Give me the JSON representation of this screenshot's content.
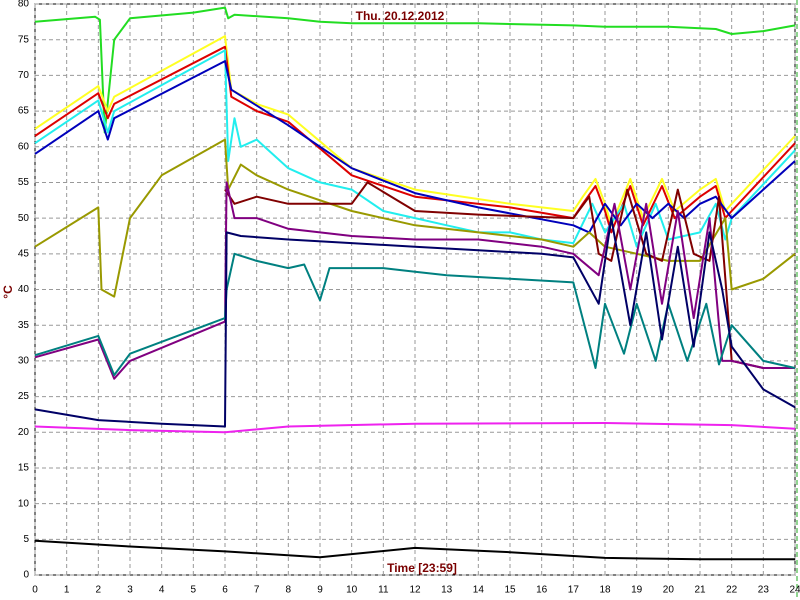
{
  "chart_data": {
    "type": "line",
    "title": "Thu. 20.12.2012",
    "x_label": "Time [23:59]",
    "y_label": "°C",
    "xlim": [
      0,
      24
    ],
    "ylim": [
      0,
      80
    ],
    "grid": true,
    "xticks": [
      0,
      1,
      2,
      3,
      4,
      5,
      6,
      7,
      8,
      9,
      10,
      11,
      12,
      13,
      14,
      15,
      16,
      17,
      18,
      19,
      20,
      21,
      22,
      23,
      24
    ],
    "yticks": [
      0,
      5,
      10,
      15,
      20,
      25,
      30,
      35,
      40,
      45,
      50,
      55,
      60,
      65,
      70,
      75,
      80
    ],
    "series": [
      {
        "color": "#22dd22",
        "x": [
          0,
          1.9,
          2.05,
          2.2,
          2.5,
          3,
          5,
          6,
          6.1,
          6.3,
          8,
          9,
          10,
          12,
          14,
          17,
          18,
          20,
          21.5,
          22,
          23,
          24
        ],
        "values": [
          77.5,
          78.2,
          77.8,
          62,
          75,
          78,
          78.8,
          79.5,
          78,
          78.5,
          78,
          77.5,
          77.3,
          77.3,
          77.3,
          77,
          76.8,
          76.8,
          76.5,
          75.8,
          76.2,
          77
        ]
      },
      {
        "color": "#ffff22",
        "x": [
          0,
          2,
          2.3,
          2.5,
          6,
          6.2,
          7,
          8,
          10,
          12,
          15,
          17,
          17.3,
          17.7,
          18,
          18.2,
          18.8,
          19.2,
          19.8,
          20.2,
          21,
          21.5,
          21.8,
          22,
          24
        ],
        "values": [
          62.5,
          68.5,
          65,
          67,
          75.5,
          68,
          66,
          64.5,
          57,
          54,
          52,
          51,
          53,
          55.5,
          52,
          49,
          55.5,
          50,
          55.5,
          51,
          54,
          55.5,
          51,
          52,
          61.5
        ]
      },
      {
        "color": "#dd0000",
        "x": [
          0,
          2,
          2.3,
          2.5,
          6,
          6.2,
          7,
          8,
          10,
          12,
          15,
          17,
          17.3,
          17.7,
          18,
          18.2,
          18.8,
          19.2,
          19.8,
          20.2,
          21,
          21.5,
          21.8,
          22,
          24
        ],
        "values": [
          61.5,
          67.5,
          64,
          66,
          74,
          67,
          65,
          63.5,
          56,
          53,
          51.5,
          50,
          52,
          54.5,
          51,
          48,
          54.5,
          49,
          54.5,
          50,
          53,
          54.5,
          50,
          51,
          60.5
        ]
      },
      {
        "color": "#22eeee",
        "x": [
          0,
          2,
          2.3,
          2.5,
          6,
          6.1,
          6.3,
          6.5,
          7,
          8,
          9,
          10,
          11,
          12,
          13,
          14,
          15,
          16,
          17,
          17.6,
          18,
          18.6,
          19,
          19.6,
          20,
          21,
          21.5,
          21.8,
          22,
          24
        ],
        "values": [
          60.5,
          66.5,
          62,
          65,
          73.5,
          58,
          64,
          60,
          61,
          57,
          55,
          54,
          51,
          50,
          49,
          48,
          48,
          47,
          46.5,
          52,
          48,
          52,
          46,
          52,
          47,
          48,
          52,
          47,
          50,
          59.5
        ]
      },
      {
        "color": "#0000bb",
        "x": [
          0,
          2,
          2.3,
          2.5,
          6,
          6.2,
          8,
          10,
          12,
          14,
          17,
          17.5,
          18,
          18.5,
          19,
          19.5,
          20,
          20.5,
          21,
          21.5,
          22,
          24
        ],
        "values": [
          59,
          65,
          61,
          64,
          72,
          68,
          63,
          57,
          53.5,
          51.5,
          49,
          48,
          52,
          49,
          52,
          50,
          52,
          50,
          52,
          53,
          50,
          58
        ]
      },
      {
        "color": "#999900",
        "x": [
          0,
          2,
          2.1,
          2.5,
          3,
          4,
          6,
          6.1,
          6.5,
          7,
          8,
          10,
          12,
          14,
          16,
          17,
          17.5,
          18,
          19,
          20,
          21,
          21.8,
          22,
          23,
          24
        ],
        "values": [
          46,
          51.5,
          40,
          39,
          50,
          56,
          61,
          54,
          57.5,
          56,
          54,
          51,
          49,
          48,
          47,
          46,
          48,
          46,
          45,
          44,
          44,
          50,
          40,
          41.5,
          45
        ]
      },
      {
        "color": "#800000",
        "x": [
          6,
          6.3,
          7,
          8,
          10,
          10.5,
          12,
          14,
          17,
          17.5,
          17.8,
          18.2,
          18.7,
          19.3,
          19.8,
          20.3,
          20.8,
          21.3,
          21.6,
          22,
          23,
          24
        ],
        "values": [
          54,
          52,
          53,
          52,
          52,
          55,
          51,
          50.5,
          50,
          53,
          45,
          44,
          54,
          45,
          44,
          54,
          45,
          44,
          53,
          30,
          29,
          29
        ]
      },
      {
        "color": "#800080",
        "x": [
          0,
          2,
          2.5,
          3,
          6,
          6.05,
          6.3,
          7,
          8,
          10,
          12,
          14,
          16,
          17,
          17.8,
          18.3,
          18.8,
          19.3,
          19.8,
          20.3,
          20.8,
          21.3,
          21.7,
          22,
          23,
          24
        ],
        "values": [
          30.5,
          33,
          27.5,
          30,
          35.5,
          55,
          50,
          50,
          48.5,
          47.5,
          47,
          47,
          46,
          45,
          42,
          52,
          40,
          52,
          38,
          51,
          36,
          50,
          30,
          30,
          29,
          29
        ]
      },
      {
        "color": "#008080",
        "x": [
          0,
          2,
          2.5,
          3,
          6,
          6.05,
          6.3,
          7,
          8,
          8.5,
          9,
          9.3,
          10,
          11,
          12,
          13,
          15,
          17,
          17.7,
          18,
          18.6,
          19,
          19.6,
          20,
          20.6,
          21.2,
          21.6,
          22,
          23,
          24
        ],
        "values": [
          30.8,
          33.5,
          28,
          31,
          36,
          40,
          45,
          44,
          43,
          43.5,
          38.5,
          43,
          43,
          43,
          42.5,
          42,
          41.5,
          41,
          29,
          38,
          31,
          38,
          30,
          38,
          30,
          38,
          29.5,
          35,
          30,
          29
        ]
      },
      {
        "color": "#000066",
        "x": [
          0,
          2,
          4,
          6,
          6.05,
          6.5,
          8,
          10,
          12,
          14,
          16,
          17,
          17.8,
          18.2,
          18.8,
          19.3,
          19.8,
          20.3,
          20.8,
          21.3,
          21.7,
          22,
          23,
          24
        ],
        "values": [
          23.2,
          21.7,
          21.2,
          20.8,
          48,
          47.5,
          47,
          46.5,
          46,
          45.5,
          45,
          44.5,
          38,
          50,
          35,
          48,
          33,
          46,
          32,
          48,
          40,
          32,
          26,
          23.5
        ]
      },
      {
        "color": "#ee22ee",
        "x": [
          0,
          3,
          6,
          8,
          12,
          18,
          22,
          24
        ],
        "values": [
          20.8,
          20.3,
          20,
          20.8,
          21.2,
          21.3,
          21,
          20.5
        ]
      },
      {
        "color": "#000000",
        "x": [
          0,
          3,
          6,
          9,
          12,
          15,
          18,
          21,
          24
        ],
        "values": [
          4.8,
          4,
          3.3,
          2.5,
          3.8,
          3.2,
          2.4,
          2.2,
          2.2
        ]
      }
    ]
  }
}
